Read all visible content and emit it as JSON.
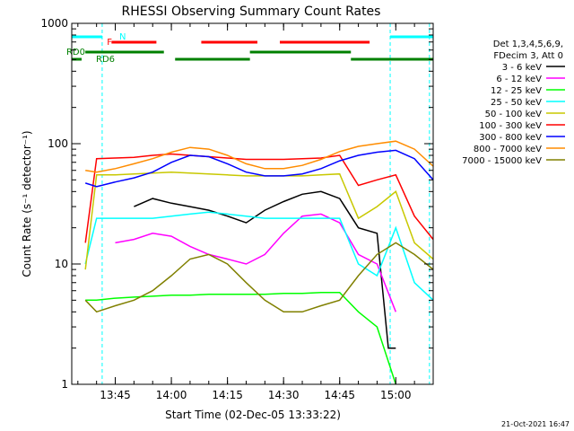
{
  "chart_data": {
    "type": "line",
    "title": "RHESSI Observing Summary Count Rates",
    "xlabel": "Start Time (02-Dec-05 13:33:22)",
    "ylabel": "Count Rate (s⁻¹ detector⁻¹)",
    "y_scale": "log",
    "ylim": [
      1,
      1000
    ],
    "xlim": [
      "13:33:22",
      "15:10:00"
    ],
    "x_ticks": [
      "13:45",
      "14:00",
      "14:15",
      "14:30",
      "14:45",
      "15:00"
    ],
    "y_ticks": [
      "1",
      "10",
      "100",
      "1000"
    ],
    "legend_header": [
      "Det 1,3,4,5,6,9,",
      "FDecim 3, Att 0"
    ],
    "legend_placement": "right, outside",
    "series": [
      {
        "name": "3 - 6 keV",
        "color": "#000000",
        "x": [
          "13:37",
          "13:40",
          "13:45",
          "13:50",
          "13:55",
          "14:00",
          "14:05",
          "14:10",
          "14:15",
          "14:20",
          "14:25",
          "14:30",
          "14:35",
          "14:40",
          "14:45",
          "14:50",
          "14:55",
          "14:58",
          "15:00"
        ],
        "y": [
          null,
          null,
          null,
          30,
          35,
          32,
          30,
          28,
          25,
          22,
          28,
          33,
          38,
          40,
          35,
          20,
          18,
          2,
          2
        ]
      },
      {
        "name": "6 - 12 keV",
        "color": "#ff00ff",
        "x": [
          "13:45",
          "13:50",
          "13:55",
          "14:00",
          "14:05",
          "14:10",
          "14:15",
          "14:20",
          "14:25",
          "14:30",
          "14:35",
          "14:40",
          "14:45",
          "14:50",
          "14:55",
          "15:00"
        ],
        "y": [
          15,
          16,
          18,
          17,
          14,
          12,
          11,
          10,
          12,
          18,
          25,
          26,
          22,
          12,
          10,
          4
        ]
      },
      {
        "name": "12 - 25 keV",
        "color": "#00ff00",
        "x": [
          "13:37",
          "13:40",
          "13:45",
          "13:50",
          "13:55",
          "14:00",
          "14:05",
          "14:10",
          "14:15",
          "14:20",
          "14:25",
          "14:30",
          "14:35",
          "14:40",
          "14:45",
          "14:50",
          "14:55",
          "15:00"
        ],
        "y": [
          5,
          5,
          5.2,
          5.3,
          5.4,
          5.5,
          5.5,
          5.6,
          5.6,
          5.6,
          5.6,
          5.7,
          5.7,
          5.8,
          5.8,
          4,
          3,
          1
        ]
      },
      {
        "name": "25 - 50 keV",
        "color": "#00ffff",
        "x": [
          "13:37",
          "13:40",
          "13:45",
          "13:50",
          "13:55",
          "14:00",
          "14:05",
          "14:10",
          "14:15",
          "14:20",
          "14:25",
          "14:30",
          "14:35",
          "14:40",
          "14:45",
          "14:50",
          "14:55",
          "15:00",
          "15:05",
          "15:10"
        ],
        "y": [
          10,
          24,
          24,
          24,
          24,
          25,
          26,
          27,
          26,
          25,
          24,
          24,
          24,
          24,
          24,
          10,
          8,
          20,
          7,
          5
        ]
      },
      {
        "name": "50 - 100 keV",
        "color": "#c8c800",
        "x": [
          "13:37",
          "13:40",
          "13:45",
          "13:50",
          "13:55",
          "14:00",
          "14:05",
          "14:10",
          "14:15",
          "14:20",
          "14:25",
          "14:30",
          "14:35",
          "14:40",
          "14:45",
          "14:50",
          "14:55",
          "15:00",
          "15:05",
          "15:10"
        ],
        "y": [
          9,
          55,
          55,
          56,
          57,
          58,
          57,
          56,
          55,
          54,
          54,
          54,
          54,
          55,
          56,
          24,
          30,
          40,
          15,
          11
        ]
      },
      {
        "name": "100 - 300 keV",
        "color": "#ff0000",
        "x": [
          "13:37",
          "13:40",
          "13:45",
          "13:50",
          "13:55",
          "14:00",
          "14:05",
          "14:10",
          "14:15",
          "14:20",
          "14:25",
          "14:30",
          "14:35",
          "14:40",
          "14:45",
          "14:50",
          "14:55",
          "15:00",
          "15:05",
          "15:10"
        ],
        "y": [
          15,
          75,
          76,
          77,
          80,
          82,
          80,
          78,
          76,
          74,
          74,
          74,
          75,
          76,
          80,
          45,
          50,
          55,
          25,
          16
        ]
      },
      {
        "name": "300 - 800 keV",
        "color": "#0000ff",
        "x": [
          "13:37",
          "13:40",
          "13:45",
          "13:50",
          "13:55",
          "14:00",
          "14:05",
          "14:10",
          "14:15",
          "14:20",
          "14:25",
          "14:30",
          "14:35",
          "14:40",
          "14:45",
          "14:50",
          "14:55",
          "15:00",
          "15:05",
          "15:10"
        ],
        "y": [
          47,
          44,
          48,
          52,
          58,
          70,
          80,
          78,
          68,
          58,
          54,
          54,
          56,
          62,
          72,
          80,
          85,
          88,
          75,
          50
        ]
      },
      {
        "name": "800 - 7000 keV",
        "color": "#ff8c00",
        "x": [
          "13:37",
          "13:40",
          "13:45",
          "13:50",
          "13:55",
          "14:00",
          "14:05",
          "14:10",
          "14:15",
          "14:20",
          "14:25",
          "14:30",
          "14:35",
          "14:40",
          "14:45",
          "14:50",
          "14:55",
          "15:00",
          "15:05",
          "15:10"
        ],
        "y": [
          60,
          58,
          62,
          68,
          75,
          85,
          93,
          90,
          80,
          68,
          62,
          62,
          66,
          74,
          86,
          95,
          100,
          105,
          90,
          65
        ]
      },
      {
        "name": "7000 - 15000 keV",
        "color": "#808000",
        "x": [
          "13:37",
          "13:40",
          "13:45",
          "13:50",
          "13:55",
          "14:00",
          "14:05",
          "14:10",
          "14:15",
          "14:20",
          "14:25",
          "14:30",
          "14:35",
          "14:40",
          "14:45",
          "14:50",
          "14:55",
          "15:00",
          "15:05",
          "15:10"
        ],
        "y": [
          5,
          4,
          4.5,
          5,
          6,
          8,
          11,
          12,
          10,
          7,
          5,
          4,
          4,
          4.5,
          5,
          8,
          12,
          15,
          12,
          9
        ]
      }
    ],
    "flags": [
      {
        "name": "N",
        "color": "#00ffff",
        "segments": [
          [
            "13:33:22",
            "13:41:30"
          ],
          [
            "14:58:30",
            "15:10:00"
          ]
        ]
      },
      {
        "name": "F",
        "color": "#ff0000",
        "segments": [
          [
            "13:44",
            "13:56"
          ],
          [
            "14:08",
            "14:22"
          ],
          [
            "14:19",
            "14:23"
          ],
          [
            "14:29",
            "14:53"
          ]
        ]
      },
      {
        "name": "RD0",
        "color": "#008000",
        "segments": [
          [
            "13:37",
            "13:58"
          ],
          [
            "14:21",
            "14:48"
          ]
        ]
      },
      {
        "name": "RD6",
        "color": "#008000",
        "segments": [
          [
            "13:33:22",
            "13:36"
          ],
          [
            "14:01",
            "14:21"
          ],
          [
            "14:48",
            "15:10"
          ]
        ]
      }
    ],
    "eclipse_markers": [
      "13:41:30",
      "14:58:30",
      "15:09:00"
    ],
    "grid": false
  },
  "footer": {
    "date": "21-Oct-2021 16:47"
  }
}
